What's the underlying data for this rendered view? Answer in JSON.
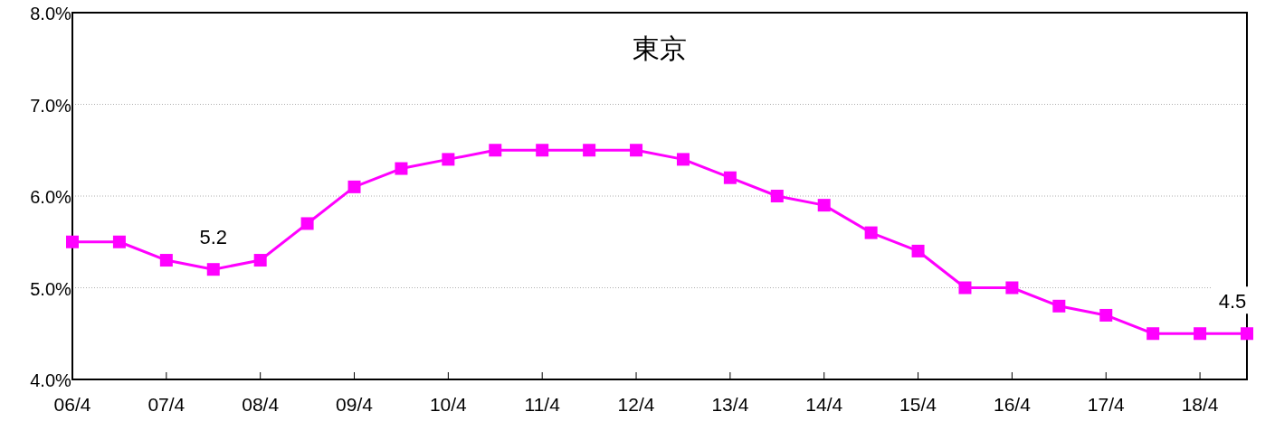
{
  "chart_data": {
    "type": "line",
    "title": "東京",
    "categories": [
      "06/4",
      null,
      "07/4",
      null,
      "08/4",
      null,
      "09/4",
      null,
      "10/4",
      null,
      "11/4",
      null,
      "12/4",
      null,
      "13/4",
      null,
      "14/4",
      null,
      "15/4",
      null,
      "16/4",
      null,
      "17/4",
      null,
      "18/4",
      null
    ],
    "series": [
      {
        "color": "#ff00ff",
        "values": [
          5.5,
          5.5,
          5.3,
          5.2,
          5.3,
          5.7,
          6.1,
          6.3,
          6.4,
          6.5,
          6.5,
          6.5,
          6.5,
          6.4,
          6.2,
          6.0,
          5.9,
          5.6,
          5.4,
          5.0,
          5.0,
          4.8,
          4.7,
          4.5,
          4.5,
          4.5
        ],
        "value_labels": [
          null,
          null,
          null,
          "5.2",
          null,
          null,
          null,
          null,
          null,
          null,
          null,
          null,
          null,
          null,
          null,
          null,
          null,
          null,
          null,
          null,
          null,
          null,
          null,
          null,
          null,
          "4.5"
        ]
      }
    ],
    "ylim": [
      4,
      8
    ],
    "yticks": [
      {
        "value": 4,
        "label": "4.0%"
      },
      {
        "value": 5,
        "label": "5.0%"
      },
      {
        "value": 6,
        "label": "6.0%"
      },
      {
        "value": 7,
        "label": "7.0%"
      },
      {
        "value": 8,
        "label": "8.0%"
      }
    ],
    "grid": "y",
    "marker": "square",
    "line_style": "solid"
  }
}
